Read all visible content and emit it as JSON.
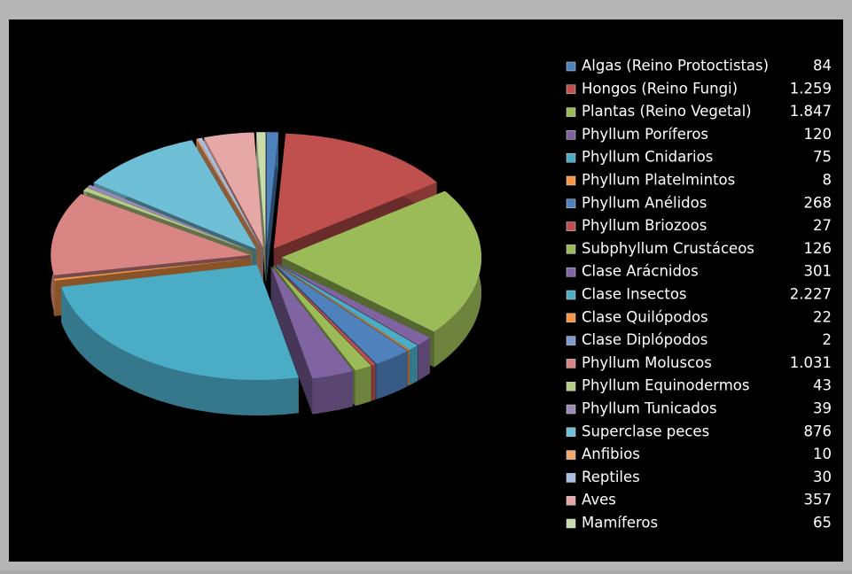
{
  "chart_data": {
    "type": "pie",
    "categories": [
      "Algas (Reino Protoctistas)",
      "Hongos (Reino Fungi)",
      "Plantas (Reino Vegetal)",
      "Phyllum Poríferos",
      "Phyllum Cnidarios",
      "Phyllum Platelmintos",
      "Phyllum Anélidos",
      "Phyllum Briozoos",
      "Subphyllum Crustáceos",
      "Clase Arácnidos",
      "Clase Insectos",
      "Clase Quilópodos",
      "Clase Diplópodos",
      "Phyllum Moluscos",
      "Phyllum Equinodermos",
      "Phyllum Tunicados",
      "Superclase peces",
      "Anfibios",
      "Reptiles",
      "Aves",
      "Mamíferos"
    ],
    "values": [
      84,
      1259,
      1847,
      120,
      75,
      8,
      268,
      27,
      126,
      301,
      2227,
      22,
      2,
      1031,
      43,
      39,
      876,
      10,
      30,
      357,
      65
    ],
    "value_labels": [
      "84",
      "1.259",
      "1.847",
      "120",
      "75",
      "8",
      "268",
      "27",
      "126",
      "301",
      "2.227",
      "22",
      "2",
      "1.031",
      "43",
      "39",
      "876",
      "10",
      "30",
      "357",
      "65"
    ],
    "colors": [
      "#4f81bd",
      "#c0504d",
      "#9bbb59",
      "#8064a2",
      "#4bacc6",
      "#f79646",
      "#4f81bd",
      "#c0504d",
      "#9bbb59",
      "#8064a2",
      "#4bacc6",
      "#f79646",
      "#7a9ccf",
      "#d98583",
      "#b4cc86",
      "#9d88ba",
      "#6fc0d6",
      "#f5a96e",
      "#a7bfe0",
      "#e6a8a6",
      "#c9dcab"
    ],
    "legend": "right"
  }
}
